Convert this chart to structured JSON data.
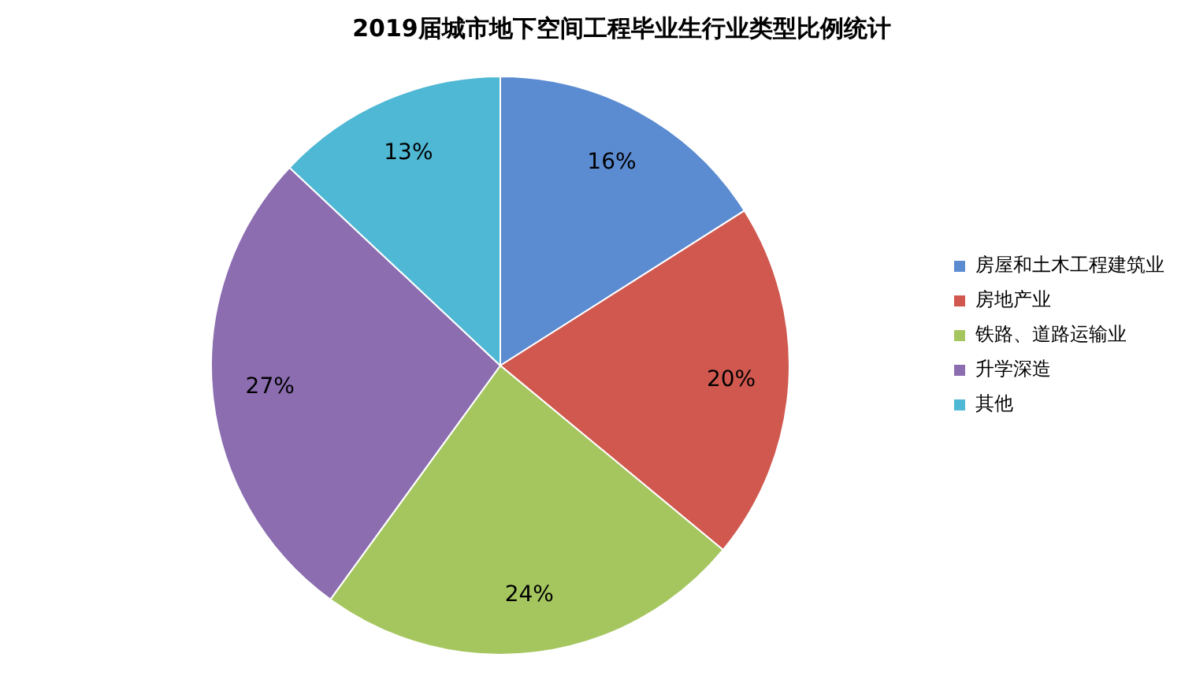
{
  "chart_data": {
    "type": "pie",
    "title": "2019届城市地下空间工程毕业生行业类型比例统计",
    "categories": [
      "房屋和土木工程建筑业",
      "房地产业",
      "铁路、道路运输业",
      "升学深造",
      "其他"
    ],
    "values": [
      16,
      20,
      24,
      27,
      13
    ],
    "value_labels": [
      "16%",
      "20%",
      "24%",
      "27%",
      "13%"
    ],
    "colors": [
      "#5b8bd0",
      "#d0584f",
      "#a5c65f",
      "#8b6db0",
      "#4fb8d4"
    ],
    "legend": "right"
  }
}
